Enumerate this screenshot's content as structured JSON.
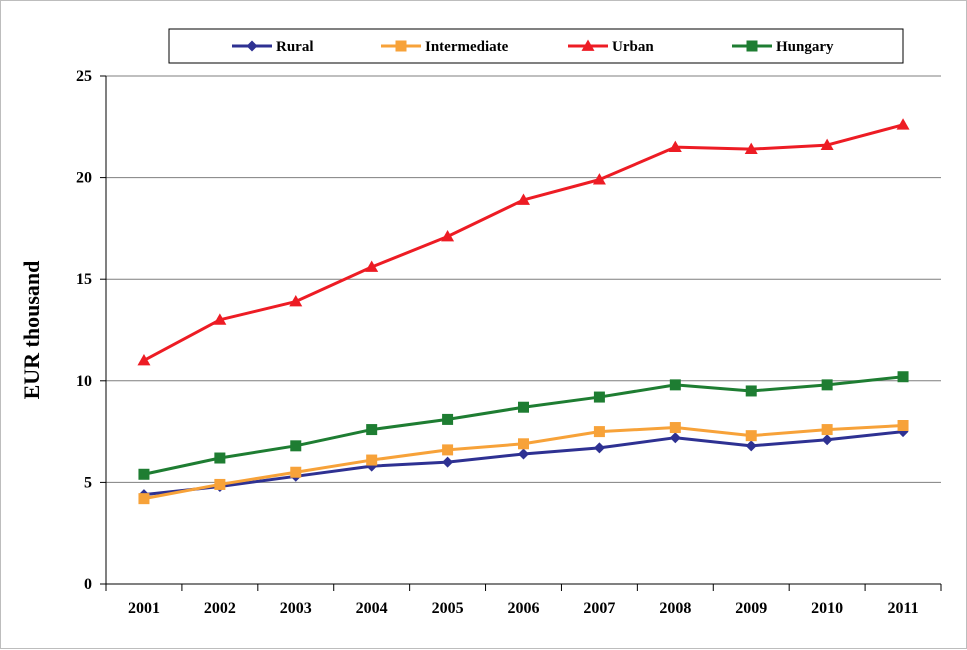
{
  "chart_data": {
    "type": "line",
    "title": "",
    "xlabel": "",
    "ylabel": "EUR thousand",
    "categories": [
      "2001",
      "2002",
      "2003",
      "2004",
      "2005",
      "2006",
      "2007",
      "2008",
      "2009",
      "2010",
      "2011"
    ],
    "ylim": [
      0,
      25
    ],
    "yticks": [
      0,
      5,
      10,
      15,
      20,
      25
    ],
    "grid": true,
    "legend": "top-center",
    "series": [
      {
        "name": "Rural",
        "color": "#2e3192",
        "marker": "diamond",
        "values": [
          4.4,
          4.8,
          5.3,
          5.8,
          6.0,
          6.4,
          6.7,
          7.2,
          6.8,
          7.1,
          7.5
        ]
      },
      {
        "name": "Intermediate",
        "color": "#f7a239",
        "marker": "square",
        "values": [
          4.2,
          4.9,
          5.5,
          6.1,
          6.6,
          6.9,
          7.5,
          7.7,
          7.3,
          7.6,
          7.8
        ]
      },
      {
        "name": "Urban",
        "color": "#ed1c24",
        "marker": "triangle",
        "values": [
          11.0,
          13.0,
          13.9,
          15.6,
          17.1,
          18.9,
          19.9,
          21.5,
          21.4,
          21.6,
          22.6
        ]
      },
      {
        "name": "Hungary",
        "color": "#1e7d32",
        "marker": "square",
        "values": [
          5.4,
          6.2,
          6.8,
          7.6,
          8.1,
          8.7,
          9.2,
          9.8,
          9.5,
          9.8,
          10.2
        ]
      }
    ]
  }
}
